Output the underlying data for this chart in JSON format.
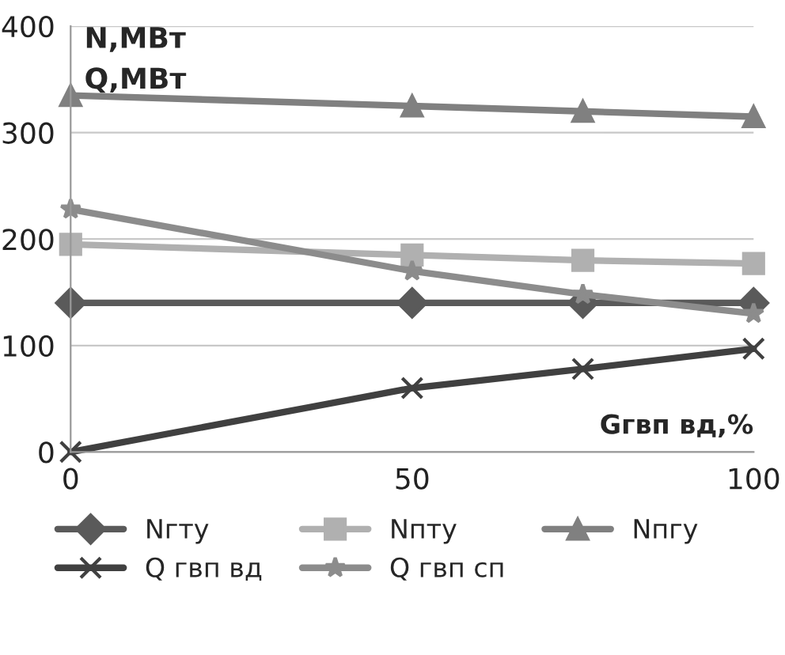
{
  "chart_data": {
    "type": "line",
    "ylabel": "N,МВт\nQ,МВт",
    "xlabel": "Gгвп вд,%",
    "x": [
      0,
      50,
      75,
      100
    ],
    "xlim": [
      0,
      100
    ],
    "xticks": [
      0,
      50,
      100
    ],
    "ylim": [
      0,
      400
    ],
    "yticks": [
      0,
      100,
      200,
      300,
      400
    ],
    "grid": "y",
    "legend": "bottom",
    "series": [
      {
        "name": "Nгту",
        "color": "#5a5a5a",
        "marker": "diamond",
        "values": [
          140,
          140,
          140,
          140
        ]
      },
      {
        "name": "Nпту",
        "color": "#b0b0b0",
        "marker": "square",
        "values": [
          195,
          185,
          180,
          177
        ]
      },
      {
        "name": "Nпгу",
        "color": "#808080",
        "marker": "triangle",
        "values": [
          335,
          325,
          320,
          315
        ]
      },
      {
        "name": "Q гвп вд",
        "color": "#404040",
        "marker": "cross",
        "values": [
          0,
          60,
          78,
          97
        ]
      },
      {
        "name": "Q гвп сп",
        "color": "#8c8c8c",
        "marker": "star",
        "values": [
          228,
          170,
          148,
          130
        ]
      }
    ]
  }
}
